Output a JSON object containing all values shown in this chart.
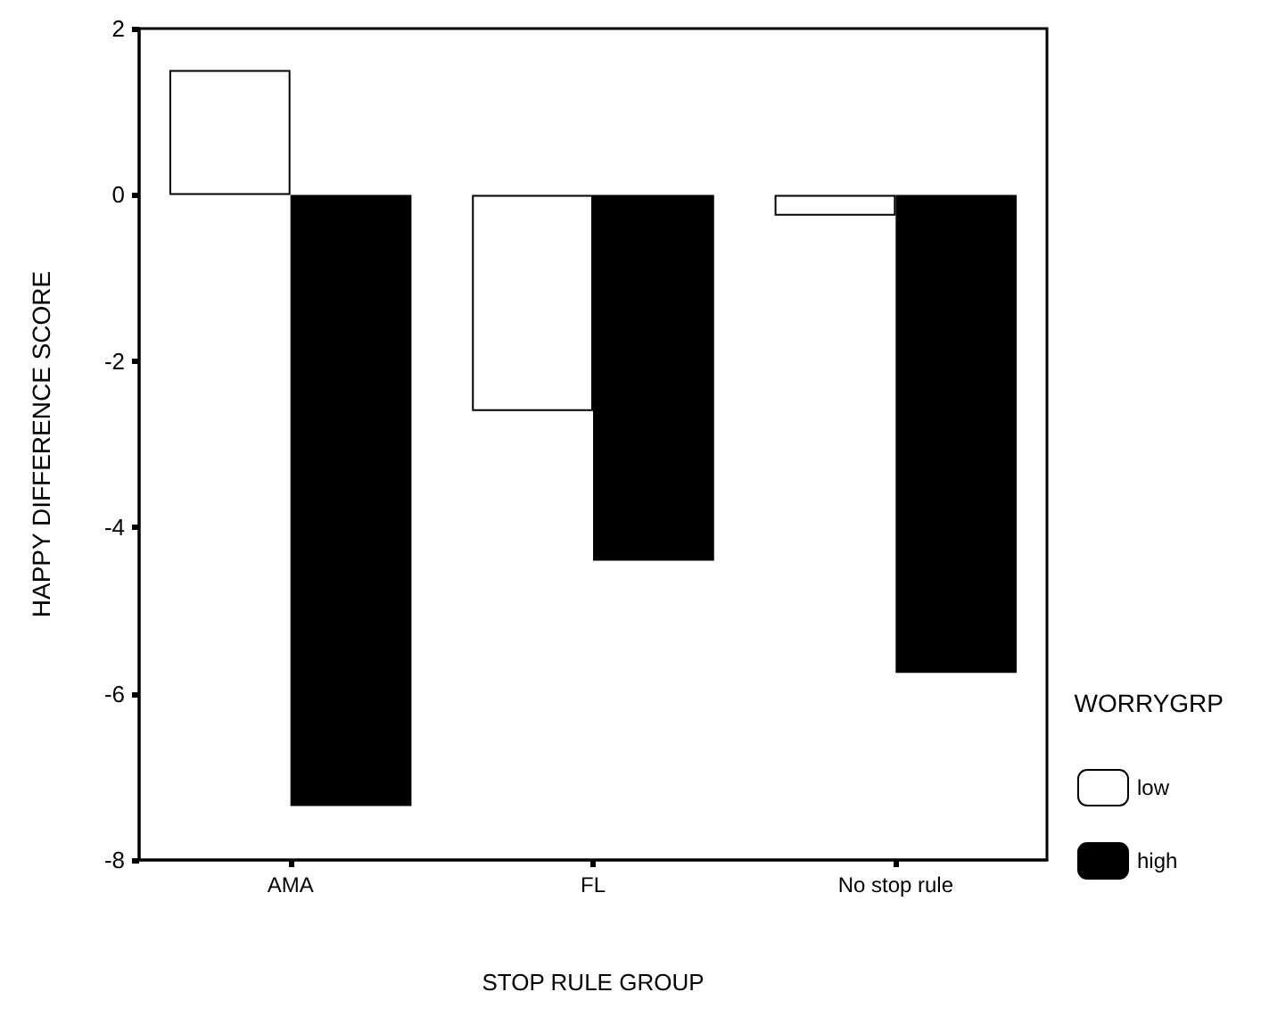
{
  "chart_data": {
    "type": "bar",
    "xlabel": "STOP RULE GROUP",
    "ylabel": "HAPPY DIFFERENCE SCORE",
    "legend_title": "WORRYGRP",
    "categories": [
      "AMA",
      "FL",
      "No stop rule"
    ],
    "series": [
      {
        "name": "low",
        "color": "#ffffff",
        "values": [
          1.5,
          -2.6,
          -0.25
        ]
      },
      {
        "name": "high",
        "color": "#000000",
        "values": [
          -7.35,
          -4.4,
          -5.75
        ]
      }
    ],
    "ylim": [
      -8,
      2
    ],
    "yticks": [
      -8,
      -6,
      -4,
      -2,
      0,
      2
    ],
    "grid": false,
    "legend": "right"
  }
}
